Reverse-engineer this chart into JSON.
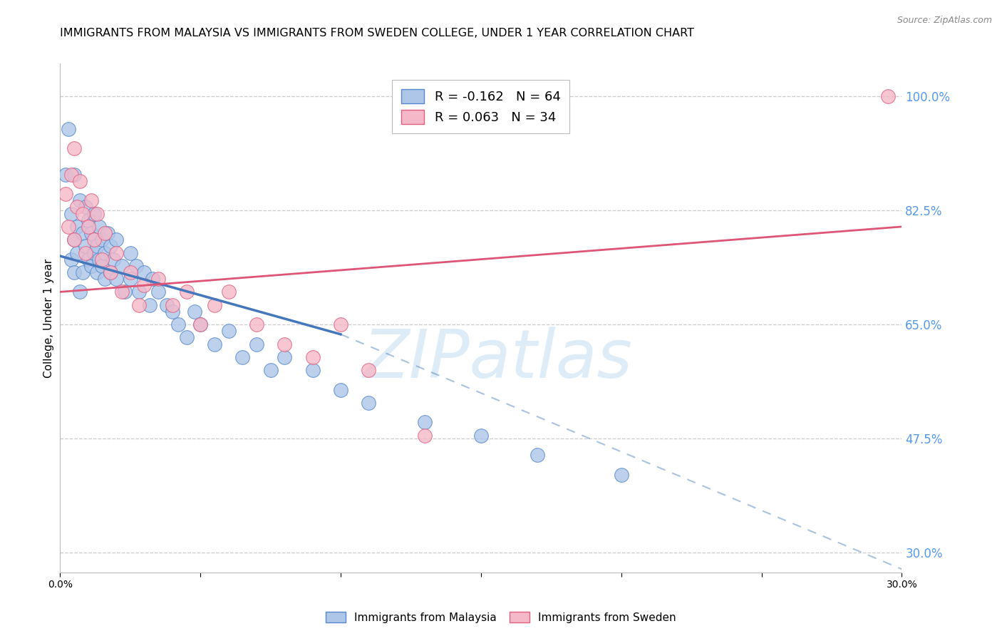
{
  "title": "IMMIGRANTS FROM MALAYSIA VS IMMIGRANTS FROM SWEDEN COLLEGE, UNDER 1 YEAR CORRELATION CHART",
  "source": "Source: ZipAtlas.com",
  "ylabel": "College, Under 1 year",
  "xlim": [
    0.0,
    0.3
  ],
  "ylim": [
    0.27,
    1.05
  ],
  "yticks": [
    1.0,
    0.825,
    0.65,
    0.475,
    0.3
  ],
  "ytick_labels": [
    "100.0%",
    "82.5%",
    "65.0%",
    "47.5%",
    "30.0%"
  ],
  "xtick_positions": [
    0.0,
    0.05,
    0.1,
    0.15,
    0.2,
    0.25,
    0.3
  ],
  "xtick_labels": [
    "0.0%",
    "",
    "",
    "",
    "",
    "",
    "30.0%"
  ],
  "legend1_label": "R = -0.162   N = 64",
  "legend2_label": "R = 0.063   N = 34",
  "malaysia_color": "#aec6e8",
  "sweden_color": "#f5b8c8",
  "malaysia_edge": "#5588cc",
  "sweden_edge": "#e06080",
  "trend_malaysia_color": "#4477bb",
  "trend_sweden_color": "#dd5577",
  "watermark_text": "ZIPatlas",
  "watermark_color": "#d0e4f5",
  "background_color": "#ffffff",
  "grid_color": "#cccccc",
  "right_yaxis_color": "#5599ee",
  "title_fontsize": 11.5,
  "label_fontsize": 11,
  "tick_fontsize": 10,
  "source_fontsize": 9,
  "malaysia_x": [
    0.002,
    0.003,
    0.004,
    0.004,
    0.005,
    0.005,
    0.005,
    0.006,
    0.006,
    0.007,
    0.007,
    0.008,
    0.008,
    0.009,
    0.009,
    0.01,
    0.01,
    0.011,
    0.011,
    0.012,
    0.012,
    0.013,
    0.013,
    0.014,
    0.014,
    0.015,
    0.015,
    0.016,
    0.016,
    0.017,
    0.018,
    0.018,
    0.019,
    0.02,
    0.02,
    0.022,
    0.023,
    0.025,
    0.025,
    0.027,
    0.028,
    0.03,
    0.032,
    0.033,
    0.035,
    0.038,
    0.04,
    0.042,
    0.045,
    0.048,
    0.05,
    0.055,
    0.06,
    0.065,
    0.07,
    0.075,
    0.08,
    0.09,
    0.1,
    0.11,
    0.13,
    0.15,
    0.17,
    0.2
  ],
  "malaysia_y": [
    0.88,
    0.95,
    0.82,
    0.75,
    0.78,
    0.73,
    0.88,
    0.8,
    0.76,
    0.84,
    0.7,
    0.79,
    0.73,
    0.77,
    0.83,
    0.75,
    0.81,
    0.74,
    0.79,
    0.76,
    0.82,
    0.73,
    0.77,
    0.75,
    0.8,
    0.74,
    0.78,
    0.72,
    0.76,
    0.79,
    0.73,
    0.77,
    0.75,
    0.72,
    0.78,
    0.74,
    0.7,
    0.76,
    0.72,
    0.74,
    0.7,
    0.73,
    0.68,
    0.72,
    0.7,
    0.68,
    0.67,
    0.65,
    0.63,
    0.67,
    0.65,
    0.62,
    0.64,
    0.6,
    0.62,
    0.58,
    0.6,
    0.58,
    0.55,
    0.53,
    0.5,
    0.48,
    0.45,
    0.42
  ],
  "sweden_x": [
    0.002,
    0.003,
    0.004,
    0.005,
    0.005,
    0.006,
    0.007,
    0.008,
    0.009,
    0.01,
    0.011,
    0.012,
    0.013,
    0.015,
    0.016,
    0.018,
    0.02,
    0.022,
    0.025,
    0.028,
    0.03,
    0.035,
    0.04,
    0.045,
    0.05,
    0.055,
    0.06,
    0.07,
    0.08,
    0.09,
    0.1,
    0.11,
    0.13,
    0.295
  ],
  "sweden_y": [
    0.85,
    0.8,
    0.88,
    0.92,
    0.78,
    0.83,
    0.87,
    0.82,
    0.76,
    0.8,
    0.84,
    0.78,
    0.82,
    0.75,
    0.79,
    0.73,
    0.76,
    0.7,
    0.73,
    0.68,
    0.71,
    0.72,
    0.68,
    0.7,
    0.65,
    0.68,
    0.7,
    0.65,
    0.62,
    0.6,
    0.65,
    0.58,
    0.48,
    1.0
  ],
  "trend_mal_x0": 0.0,
  "trend_mal_x1": 0.1,
  "trend_mal_x2": 0.3,
  "trend_mal_y0": 0.755,
  "trend_mal_y1": 0.635,
  "trend_mal_y2": 0.275,
  "trend_swe_x0": 0.0,
  "trend_swe_x2": 0.3,
  "trend_swe_y0": 0.7,
  "trend_swe_y2": 0.8
}
